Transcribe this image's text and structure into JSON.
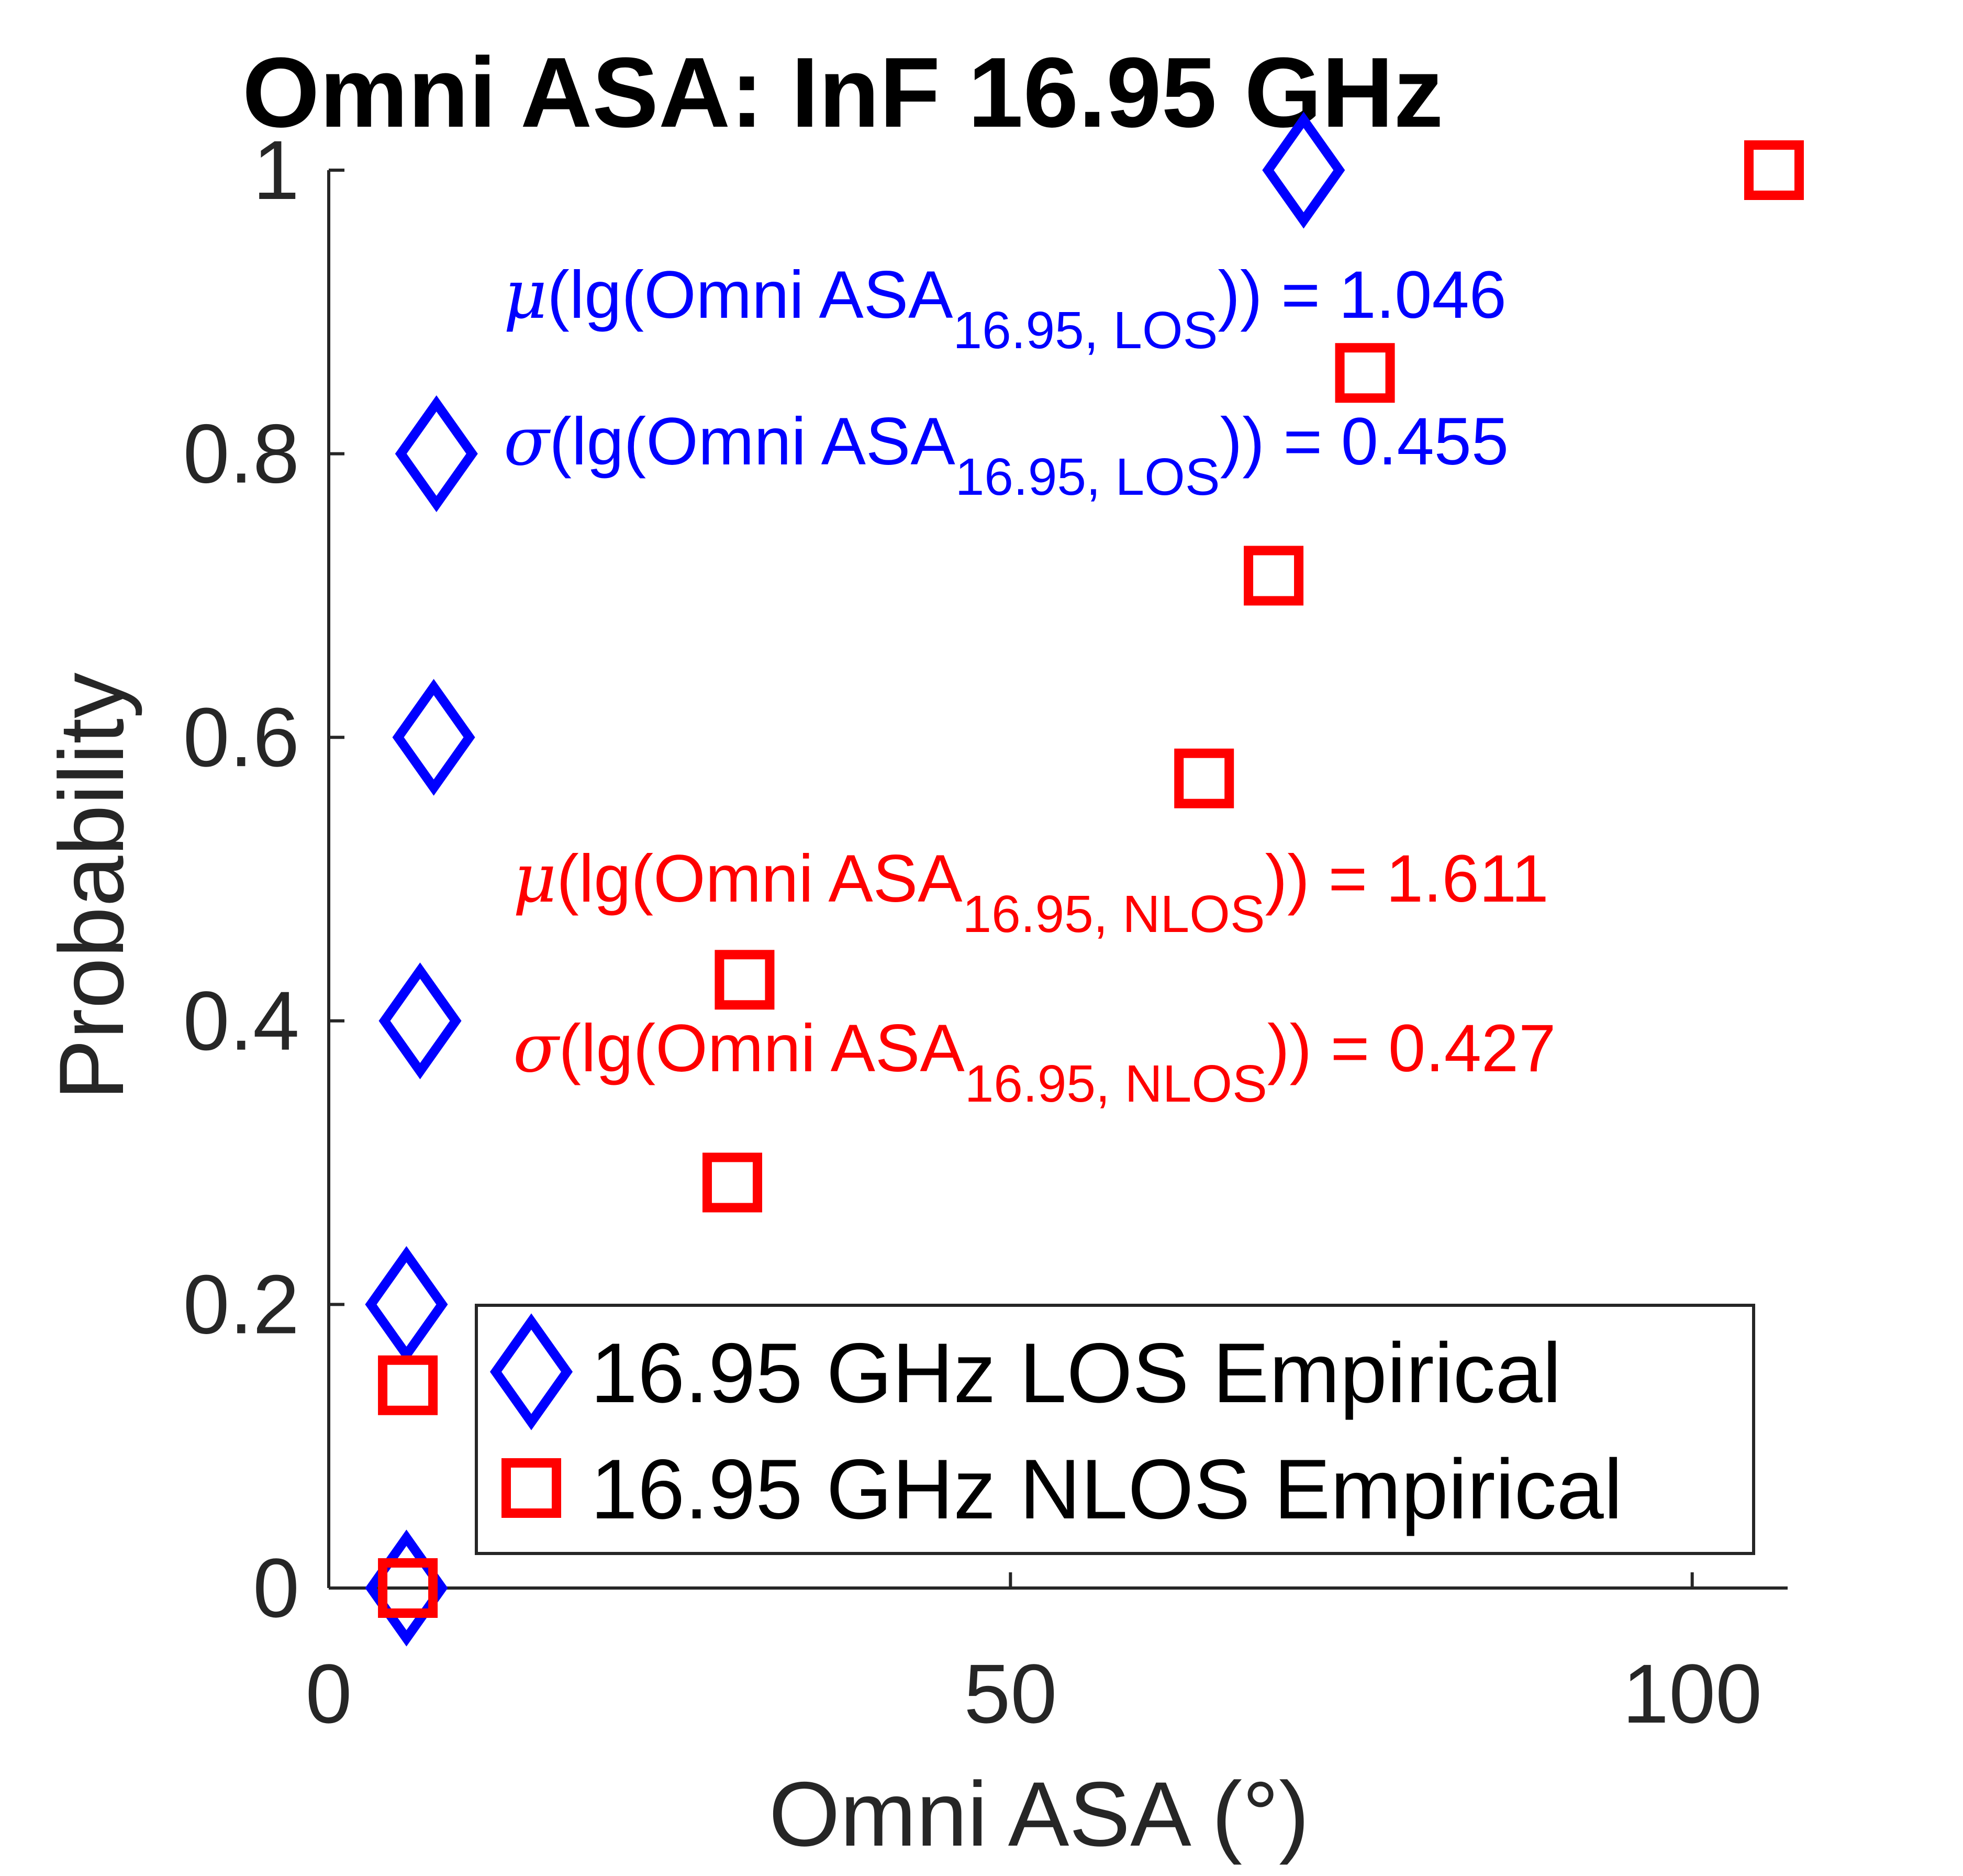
{
  "chart_data": {
    "type": "scatter",
    "title": "Omni ASA: InF 16.95 GHz",
    "xlabel": "Omni ASA (°)",
    "ylabel": "Probability",
    "xlim": [
      0,
      107
    ],
    "ylim": [
      0,
      1
    ],
    "xticks": [
      0,
      50,
      100
    ],
    "xtick_labels": [
      "0",
      "50",
      "100"
    ],
    "yticks": [
      0,
      0.2,
      0.4,
      0.6,
      0.8,
      1
    ],
    "ytick_labels": [
      "0",
      "0.2",
      "0.4",
      "0.6",
      "0.8",
      "1"
    ],
    "grid": false,
    "legend_position": "bottom-right",
    "series": [
      {
        "name": "16.95 GHz LOS Empirical",
        "color": "#0000ff",
        "marker": "diamond",
        "x": [
          5.7,
          5.7,
          6.7,
          7.7,
          7.9,
          71.5
        ],
        "y": [
          0,
          0.2,
          0.4,
          0.6,
          0.8,
          1
        ]
      },
      {
        "name": "16.95 GHz NLOS Empirical",
        "color": "#ff0000",
        "marker": "square",
        "x": [
          5.8,
          5.8,
          29.6,
          30.5,
          64.2,
          69.3,
          76.0,
          106.0
        ],
        "y": [
          0,
          0.143,
          0.286,
          0.429,
          0.571,
          0.714,
          0.857,
          1
        ]
      }
    ],
    "annotations": [
      {
        "id": "los_mu",
        "color": "#0000ff",
        "symbol": "μ",
        "prefix": "(lg(Omni ASA",
        "subscript": "16.95, LOS",
        "suffix": ")) = 1.046"
      },
      {
        "id": "los_sigma",
        "color": "#0000ff",
        "symbol": "σ",
        "prefix": "(lg(Omni ASA",
        "subscript": "16.95, LOS",
        "suffix": ")) = 0.455"
      },
      {
        "id": "nlos_mu",
        "color": "#ff0000",
        "symbol": "μ",
        "prefix": "(lg(Omni ASA",
        "subscript": "16.95, NLOS",
        "suffix": ")) = 1.611"
      },
      {
        "id": "nlos_sigma",
        "color": "#ff0000",
        "symbol": "σ",
        "prefix": "(lg(Omni ASA",
        "subscript": "16.95, NLOS",
        "suffix": ")) = 0.427"
      }
    ]
  }
}
